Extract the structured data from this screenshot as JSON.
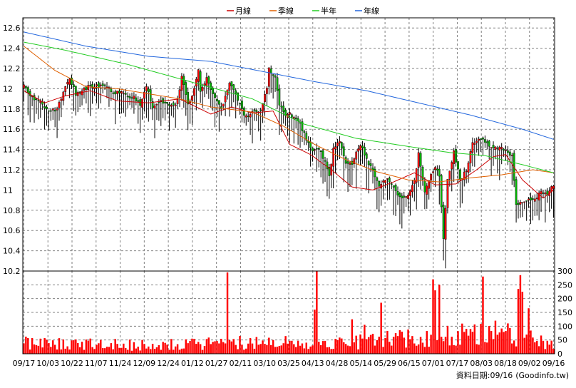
{
  "chart_data": {
    "type": "candlestick+volume",
    "legend": {
      "position": "top-center",
      "entries": [
        {
          "label": "月線",
          "color": "#cc0000"
        },
        {
          "label": "季線",
          "color": "#e06000"
        },
        {
          "label": "半年",
          "color": "#22cc22"
        },
        {
          "label": "年線",
          "color": "#2266dd"
        }
      ]
    },
    "colors": {
      "up": "#ff0000",
      "down": "#00b400",
      "volume": "#ff0000",
      "wick": "#000000"
    },
    "price_axis": {
      "side": "left",
      "range": [
        10.2,
        12.7
      ],
      "ticks": [
        "10.2",
        "10.4",
        "10.6",
        "10.8",
        "11",
        "11.2",
        "11.4",
        "11.6",
        "11.8",
        "12",
        "12.2",
        "12.4",
        "12.6"
      ]
    },
    "volume_axis": {
      "side": "right",
      "range": [
        0,
        300
      ],
      "ticks": [
        "0",
        "50",
        "100",
        "150",
        "200",
        "250",
        "300"
      ]
    },
    "x_labels": [
      "09/17",
      "10/03",
      "10/22",
      "11/07",
      "11/24",
      "12/09",
      "12/24",
      "01/12",
      "01/27",
      "02/11",
      "03/10",
      "03/25",
      "04/13",
      "04/28",
      "05/14",
      "05/29",
      "06/15",
      "07/01",
      "07/17",
      "08/03",
      "08/18",
      "09/02",
      "09/16"
    ],
    "grid": true,
    "moving_averages": {
      "月線": [
        [
          0,
          11.98
        ],
        [
          10,
          11.86
        ],
        [
          20,
          11.93
        ],
        [
          32,
          11.98
        ],
        [
          45,
          11.88
        ],
        [
          60,
          11.86
        ],
        [
          75,
          11.9
        ],
        [
          90,
          11.75
        ],
        [
          100,
          11.82
        ],
        [
          110,
          11.76
        ],
        [
          120,
          11.78
        ],
        [
          128,
          11.45
        ],
        [
          138,
          11.35
        ],
        [
          148,
          11.2
        ],
        [
          158,
          11.03
        ],
        [
          168,
          11.0
        ],
        [
          178,
          11.08
        ],
        [
          188,
          11.17
        ],
        [
          198,
          11.05
        ],
        [
          208,
          11.06
        ],
        [
          218,
          11.2
        ],
        [
          226,
          11.33
        ],
        [
          232,
          11.35
        ],
        [
          240,
          11.1
        ],
        [
          250,
          10.92
        ],
        [
          255,
          11.0
        ]
      ],
      "季線": [
        [
          0,
          12.42
        ],
        [
          15,
          12.18
        ],
        [
          30,
          12.02
        ],
        [
          45,
          12.0
        ],
        [
          60,
          11.95
        ],
        [
          75,
          11.9
        ],
        [
          90,
          11.82
        ],
        [
          110,
          11.77
        ],
        [
          125,
          11.63
        ],
        [
          140,
          11.45
        ],
        [
          155,
          11.3
        ],
        [
          170,
          11.18
        ],
        [
          185,
          11.1
        ],
        [
          200,
          11.08
        ],
        [
          215,
          11.12
        ],
        [
          230,
          11.15
        ],
        [
          245,
          11.2
        ],
        [
          255,
          11.17
        ]
      ],
      "半年": [
        [
          0,
          12.46
        ],
        [
          20,
          12.38
        ],
        [
          50,
          12.24
        ],
        [
          80,
          12.07
        ],
        [
          110,
          11.9
        ],
        [
          135,
          11.65
        ],
        [
          160,
          11.51
        ],
        [
          185,
          11.43
        ],
        [
          205,
          11.37
        ],
        [
          222,
          11.34
        ],
        [
          240,
          11.25
        ],
        [
          255,
          11.17
        ]
      ],
      "年線": [
        [
          0,
          12.56
        ],
        [
          30,
          12.42
        ],
        [
          60,
          12.32
        ],
        [
          90,
          12.27
        ],
        [
          115,
          12.17
        ],
        [
          140,
          12.07
        ],
        [
          165,
          11.98
        ],
        [
          190,
          11.86
        ],
        [
          215,
          11.74
        ],
        [
          240,
          11.6
        ],
        [
          255,
          11.5
        ]
      ]
    },
    "candles": {
      "count": 256,
      "source": "last",
      "path": [
        [
          0,
          12.03
        ],
        [
          3,
          11.92
        ],
        [
          8,
          11.88
        ],
        [
          11,
          11.8
        ],
        [
          16,
          11.79
        ],
        [
          19,
          11.98
        ],
        [
          22,
          12.1
        ],
        [
          25,
          11.95
        ],
        [
          28,
          11.97
        ],
        [
          31,
          12.03
        ],
        [
          40,
          12.03
        ],
        [
          43,
          11.96
        ],
        [
          47,
          11.97
        ],
        [
          50,
          11.93
        ],
        [
          53,
          11.92
        ],
        [
          56,
          11.85
        ],
        [
          59,
          12.03
        ],
        [
          62,
          11.82
        ],
        [
          66,
          11.87
        ],
        [
          71,
          11.82
        ],
        [
          74,
          11.88
        ],
        [
          76,
          12.12
        ],
        [
          79,
          11.85
        ],
        [
          81,
          11.92
        ],
        [
          84,
          12.2
        ],
        [
          85,
          11.97
        ],
        [
          88,
          12.1
        ],
        [
          91,
          11.93
        ],
        [
          95,
          11.8
        ],
        [
          99,
          12.05
        ],
        [
          103,
          11.9
        ],
        [
          106,
          11.73
        ],
        [
          109,
          11.75
        ],
        [
          114,
          11.8
        ],
        [
          117,
          12.0
        ],
        [
          118,
          12.2
        ],
        [
          121,
          12.1
        ],
        [
          123,
          11.85
        ],
        [
          126,
          11.75
        ],
        [
          128,
          11.75
        ],
        [
          132,
          11.7
        ],
        [
          136,
          11.5
        ],
        [
          139,
          11.4
        ],
        [
          142,
          11.42
        ],
        [
          145,
          11.28
        ],
        [
          147,
          11.15
        ],
        [
          149,
          11.4
        ],
        [
          152,
          11.5
        ],
        [
          155,
          11.28
        ],
        [
          158,
          11.27
        ],
        [
          162,
          11.45
        ],
        [
          165,
          11.3
        ],
        [
          168,
          11.18
        ],
        [
          171,
          11.05
        ],
        [
          175,
          11.1
        ],
        [
          179,
          10.98
        ],
        [
          182,
          10.9
        ],
        [
          185,
          10.95
        ],
        [
          188,
          11.08
        ],
        [
          190,
          11.35
        ],
        [
          193,
          11.0
        ],
        [
          195,
          11.1
        ],
        [
          198,
          11.22
        ],
        [
          200,
          11.15
        ],
        [
          202,
          10.5
        ],
        [
          204,
          11.1
        ],
        [
          207,
          11.37
        ],
        [
          210,
          11.1
        ],
        [
          213,
          11.2
        ],
        [
          216,
          11.45
        ],
        [
          220,
          11.5
        ],
        [
          223,
          11.45
        ],
        [
          226,
          11.42
        ],
        [
          230,
          11.43
        ],
        [
          233,
          11.35
        ],
        [
          235,
          11.35
        ],
        [
          237,
          10.85
        ],
        [
          240,
          10.88
        ],
        [
          243,
          10.9
        ],
        [
          246,
          10.9
        ],
        [
          249,
          11.0
        ],
        [
          252,
          10.95
        ],
        [
          254,
          11.05
        ],
        [
          255,
          11.05
        ]
      ],
      "wick_low": 0.11,
      "wick_high": 0.05
    },
    "volume": {
      "base": [
        [
          0,
          38
        ],
        [
          30,
          35
        ],
        [
          60,
          30
        ],
        [
          80,
          35
        ],
        [
          100,
          40
        ],
        [
          120,
          42
        ],
        [
          140,
          38
        ],
        [
          160,
          45
        ],
        [
          180,
          55
        ],
        [
          200,
          60
        ],
        [
          215,
          75
        ],
        [
          230,
          85
        ],
        [
          240,
          60
        ],
        [
          255,
          30
        ]
      ],
      "spikes": [
        [
          98,
          295
        ],
        [
          140,
          160
        ],
        [
          141,
          300
        ],
        [
          172,
          185
        ],
        [
          197,
          270
        ],
        [
          198,
          230
        ],
        [
          200,
          250
        ],
        [
          221,
          280
        ],
        [
          238,
          235
        ],
        [
          239,
          285
        ],
        [
          240,
          225
        ],
        [
          243,
          165
        ],
        [
          227,
          120
        ],
        [
          158,
          125
        ],
        [
          164,
          105
        ]
      ]
    },
    "footer": {
      "label": "資料日期:",
      "date": "09/16",
      "source": "(Goodinfo.tw)"
    }
  }
}
